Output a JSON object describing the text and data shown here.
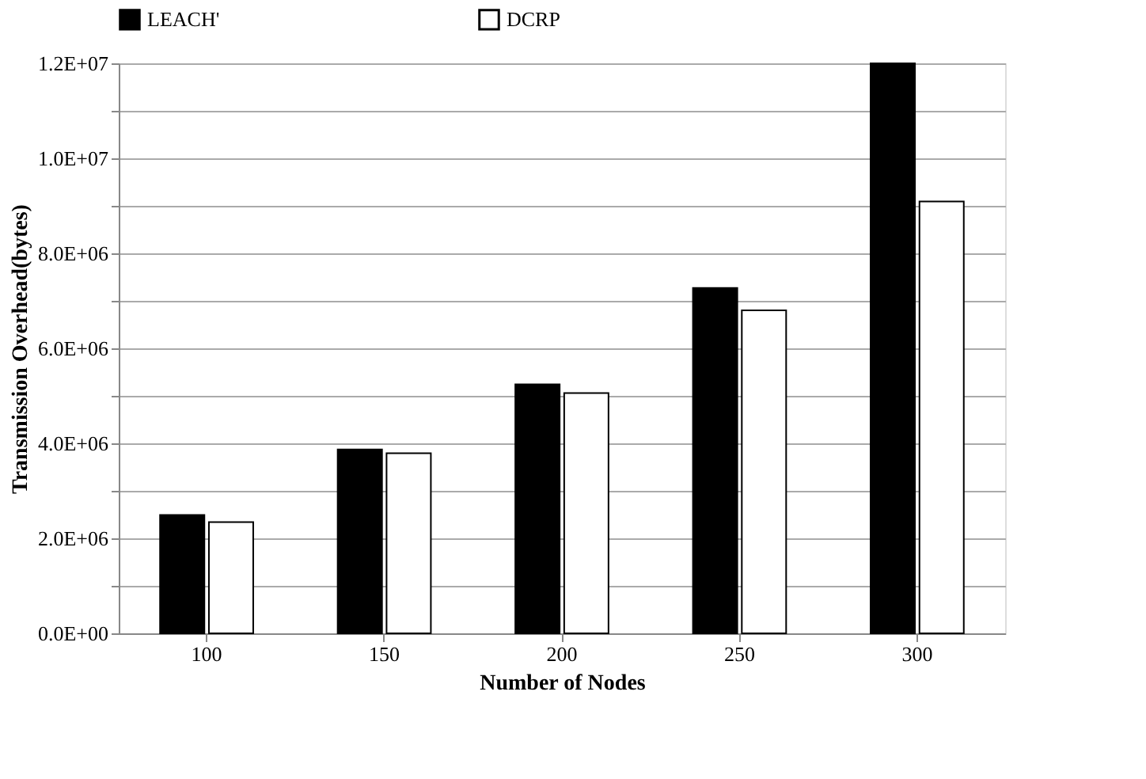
{
  "chart_data": {
    "type": "bar",
    "xlabel": "Number of Nodes",
    "ylabel": "Transmission Overhead(bytes)",
    "categories": [
      "100",
      "150",
      "200",
      "250",
      "300"
    ],
    "series": [
      {
        "name": "LEACH'",
        "color": "#000000",
        "values": [
          2490000,
          3870000,
          5240000,
          7270000,
          12000000
        ]
      },
      {
        "name": "DCRP",
        "color": "#ffffff",
        "values": [
          2340000,
          3790000,
          5060000,
          6800000,
          9090000
        ]
      }
    ],
    "ylim": [
      0,
      12000000
    ],
    "yticks": [
      {
        "value": 0,
        "label": "0.0E+00"
      },
      {
        "value": 1000000,
        "label": null
      },
      {
        "value": 2000000,
        "label": "2.0E+06"
      },
      {
        "value": 3000000,
        "label": null
      },
      {
        "value": 4000000,
        "label": "4.0E+06"
      },
      {
        "value": 5000000,
        "label": null
      },
      {
        "value": 6000000,
        "label": "6.0E+06"
      },
      {
        "value": 7000000,
        "label": null
      },
      {
        "value": 8000000,
        "label": "8.0E+06"
      },
      {
        "value": 9000000,
        "label": null
      },
      {
        "value": 10000000,
        "label": "1.0E+07"
      },
      {
        "value": 11000000,
        "label": null
      },
      {
        "value": 12000000,
        "label": "1.2E+07"
      }
    ],
    "grid": "y",
    "legend": "top"
  }
}
